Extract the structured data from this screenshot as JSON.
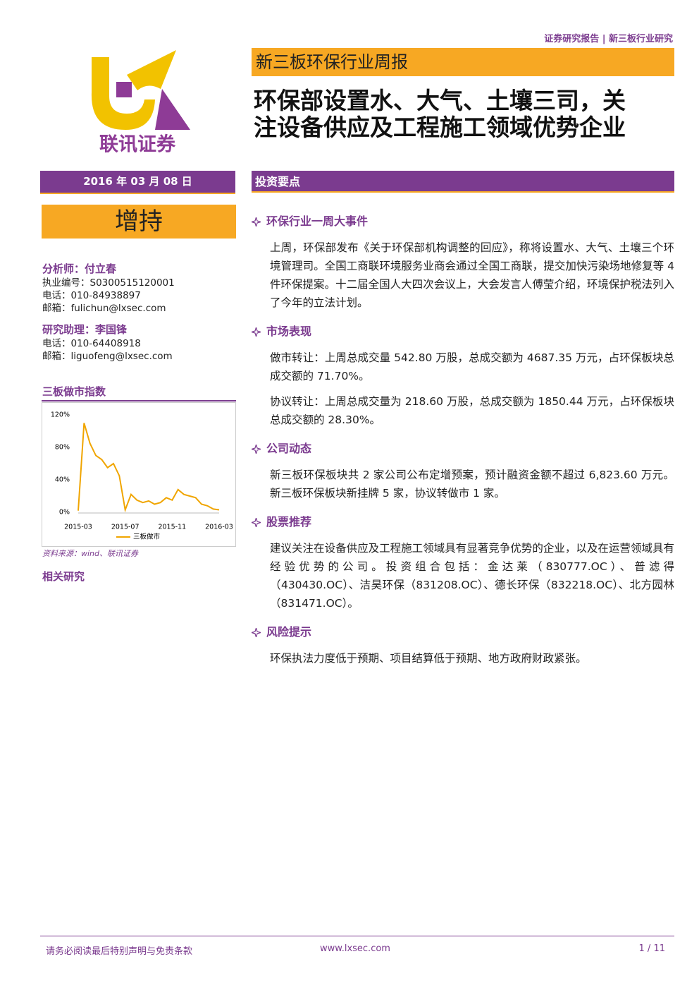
{
  "header": {
    "report_type": "证券研究报告 | 新三板行业研究",
    "logo_text": "联讯证券",
    "series": "新三板环保行业周报",
    "title": [
      "环保部设置水、大气、土壤三司，关",
      "注设备供应及工程施工领域优势企业"
    ]
  },
  "sidebar": {
    "date": "2016 年 03 月 08 日",
    "rating": "增持",
    "analysts": [
      {
        "role": "分析师：付立春",
        "lines": [
          "执业编号：S0300515120001",
          "电话：010-84938897",
          "邮箱：fulichun@lxsec.com"
        ]
      },
      {
        "role": "研究助理：李国锋",
        "lines": [
          "电话：010-64408918",
          "邮箱：liguofeng@lxsec.com"
        ]
      }
    ],
    "chart_title": "三板做市指数",
    "source": "资料来源：wind、联讯证券",
    "related": "相关研究"
  },
  "chart_data": {
    "type": "line",
    "categories": [
      "2015-03",
      null,
      null,
      null,
      null,
      null,
      null,
      null,
      "2015-07",
      null,
      null,
      null,
      null,
      null,
      null,
      null,
      "2015-11",
      null,
      null,
      null,
      null,
      null,
      null,
      null,
      "2016-03"
    ],
    "series": [
      {
        "name": "三板做市",
        "color": "#f0a500",
        "values": [
          2,
          110,
          85,
          70,
          65,
          55,
          60,
          45,
          3,
          22,
          15,
          12,
          14,
          10,
          12,
          18,
          15,
          28,
          22,
          20,
          18,
          10,
          8,
          4,
          3
        ]
      }
    ],
    "ylim": [
      0,
      120
    ],
    "yticks": [
      {
        "value": 0,
        "label": "0%"
      },
      {
        "value": 40,
        "label": "40%"
      },
      {
        "value": 80,
        "label": "80%"
      },
      {
        "value": 120,
        "label": "120%"
      }
    ],
    "grid": false
  },
  "main": {
    "heading": "投资要点",
    "sections": [
      {
        "title": "环保行业一周大事件",
        "paragraphs": [
          "上周，环保部发布《关于环保部机构调整的回应》，称将设置水、大气、土壤三个环境管理司。全国工商联环境服务业商会通过全国工商联，提交加快污染场地修复等 4 件环保提案。十二届全国人大四次会议上，大会发言人傅莹介绍，环境保护税法列入了今年的立法计划。"
        ]
      },
      {
        "title": "市场表现",
        "paragraphs": [
          "做市转让：上周总成交量 542.80 万股，总成交额为 4687.35 万元，占环保板块总成交额的 71.70%。",
          "协议转让：上周总成交量为 218.60 万股，总成交额为 1850.44 万元，占环保板块总成交额的 28.30%。"
        ]
      },
      {
        "title": "公司动态",
        "paragraphs": [
          "新三板环保板块共 2 家公司公布定增预案，预计融资金额不超过 6,823.60 万元。新三板环保板块新挂牌 5 家，协议转做市 1 家。"
        ]
      },
      {
        "title": "股票推荐",
        "paragraphs": [
          "建议关注在设备供应及工程施工领域具有显著竞争优势的企业，以及在运营领域具有经验优势的公司。投资组合包括：金达莱（830777.OC）、普滤得（430430.OC）、洁昊环保（831208.OC）、德长环保（832218.OC）、北方园林（831471.OC）。"
        ]
      },
      {
        "title": "风险提示",
        "paragraphs": [
          "环保执法力度低于预期、项目结算低于预期、地方政府财政紧张。"
        ]
      }
    ]
  },
  "footer": {
    "disclaimer": "请务必阅读最后特别声明与免责条款",
    "website": "www.lxsec.com",
    "page": "1 / 11"
  }
}
